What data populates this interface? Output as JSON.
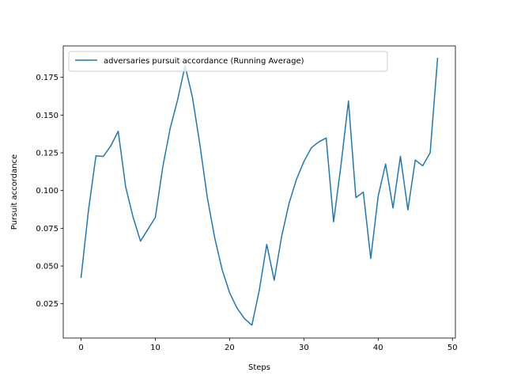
{
  "chart_data": {
    "type": "line",
    "xlabel": "Steps",
    "ylabel": "Pursuit accordance",
    "xlim": [
      -2.4,
      50.4
    ],
    "ylim": [
      0.0023,
      0.1958
    ],
    "xticks": [
      0,
      10,
      20,
      30,
      40,
      50
    ],
    "yticks": [
      0.025,
      0.05,
      0.075,
      0.1,
      0.125,
      0.15,
      0.175
    ],
    "grid": false,
    "legend_position": "upper-left",
    "series": [
      {
        "name": "adversaries pursuit accordance (Running Average)",
        "color": "#1f77b4",
        "x": [
          0,
          1,
          2,
          3,
          4,
          5,
          6,
          7,
          8,
          9,
          10,
          11,
          12,
          13,
          14,
          15,
          16,
          17,
          18,
          19,
          20,
          21,
          22,
          23,
          24,
          25,
          26,
          27,
          28,
          29,
          30,
          31,
          32,
          33,
          34,
          35,
          36,
          37,
          38,
          39,
          40,
          41,
          42,
          43,
          44,
          45,
          46,
          47,
          48
        ],
        "y": [
          0.0425,
          0.087,
          0.123,
          0.1226,
          0.1296,
          0.1393,
          0.1025,
          0.0824,
          0.0665,
          0.0743,
          0.0822,
          0.1157,
          0.1412,
          0.1602,
          0.1826,
          0.1617,
          0.1303,
          0.0953,
          0.0685,
          0.0475,
          0.0323,
          0.0221,
          0.0152,
          0.0108,
          0.0341,
          0.0643,
          0.0406,
          0.0695,
          0.0915,
          0.1074,
          0.1192,
          0.1283,
          0.1322,
          0.1348,
          0.0793,
          0.117,
          0.1593,
          0.0953,
          0.099,
          0.055,
          0.0962,
          0.1176,
          0.0884,
          0.1227,
          0.0872,
          0.1202,
          0.1164,
          0.125,
          0.1875
        ]
      }
    ]
  }
}
